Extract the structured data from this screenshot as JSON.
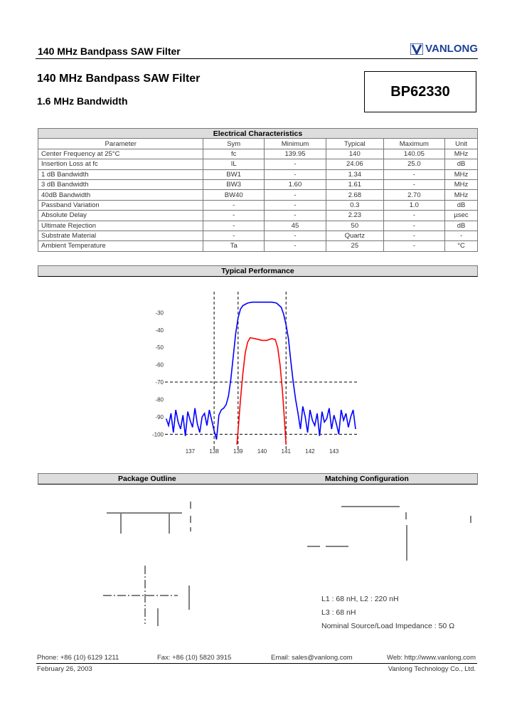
{
  "header": {
    "title": "140 MHz Bandpass SAW Filter",
    "logo_text": "VANLONG",
    "brand_color": "#1e3f9a"
  },
  "title": "140 MHz Bandpass SAW Filter",
  "subtitle": "1.6 MHz Bandwidth",
  "part_number": "BP62330",
  "electrical": {
    "caption": "Electrical Characteristics",
    "columns": [
      "Parameter",
      "Sym",
      "Minimum",
      "Typical",
      "Maximum",
      "Unit"
    ],
    "rows": [
      [
        "Center Frequency at 25°C",
        "fc",
        "139.95",
        "140",
        "140.05",
        "MHz"
      ],
      [
        "Insertion Loss at fc",
        "IL",
        "-",
        "24.06",
        "25.0",
        "dB"
      ],
      [
        "1 dB Bandwidth",
        "BW1",
        "-",
        "1.34",
        "-",
        "MHz"
      ],
      [
        "3 dB Bandwidth",
        "BW3",
        "1.60",
        "1.61",
        "-",
        "MHz"
      ],
      [
        "40dB Bandwidth",
        "BW40",
        "-",
        "2.68",
        "2.70",
        "MHz"
      ],
      [
        "Passband Variation",
        "-",
        "-",
        "0.3",
        "1.0",
        "dB"
      ],
      [
        "Absolute Delay",
        "-",
        "-",
        "2.23",
        "-",
        "µsec"
      ],
      [
        "Ultimate Rejection",
        "-",
        "45",
        "50",
        "-",
        "dB"
      ],
      [
        "Substrate Material",
        "-",
        "-",
        "Quartz",
        "-",
        "-"
      ],
      [
        "Ambient Temperature",
        "Ta",
        "-",
        "25",
        "-",
        "°C"
      ]
    ]
  },
  "performance_title": "Typical Performance",
  "chart_data": {
    "type": "line",
    "xlim": [
      135.95,
      143.9
    ],
    "ylim": [
      -106,
      -18
    ],
    "grid": false,
    "x_ticks": [
      "137",
      "138",
      "139",
      "140",
      "141",
      "142",
      "143"
    ],
    "y_ticks": [
      "-30",
      "-40",
      "-50",
      "-60",
      "-70",
      "-80",
      "-90",
      "-100"
    ],
    "dashed_x": [
      138,
      139,
      141
    ],
    "dashed_y": [
      -70,
      -100
    ],
    "series": [
      {
        "color": "#0000ff",
        "x": [
          136.0,
          136.1,
          136.2,
          136.3,
          136.4,
          136.5,
          136.6,
          136.7,
          136.8,
          136.9,
          137.0,
          137.1,
          137.2,
          137.3,
          137.4,
          137.5,
          137.6,
          137.7,
          137.8,
          137.9,
          138.0,
          138.1,
          138.2,
          138.3,
          138.4,
          138.5,
          138.6,
          138.7,
          138.8,
          138.9,
          139.0,
          139.1,
          139.2,
          139.4,
          139.6,
          140.0,
          140.4,
          140.6,
          140.8,
          140.9,
          141.0,
          141.1,
          141.2,
          141.3,
          141.4,
          141.5,
          141.6,
          141.7,
          141.8,
          141.9,
          142.0,
          142.1,
          142.2,
          142.3,
          142.4,
          142.5,
          142.6,
          142.7,
          142.8,
          142.9,
          143.0,
          143.1,
          143.2,
          143.3,
          143.4,
          143.5,
          143.6,
          143.7,
          143.8,
          143.9
        ],
        "y": [
          -91,
          -95,
          -88,
          -99,
          -86,
          -93,
          -97,
          -89,
          -101,
          -87,
          -92,
          -96,
          -85,
          -94,
          -99,
          -90,
          -88,
          -95,
          -86,
          -92,
          -98,
          -103,
          -89,
          -86,
          -85,
          -83,
          -78,
          -68,
          -55,
          -42,
          -33,
          -28,
          -26,
          -24.5,
          -24,
          -24,
          -24,
          -24.5,
          -27,
          -31,
          -37,
          -45,
          -58,
          -70,
          -80,
          -88,
          -97,
          -84,
          -90,
          -99,
          -86,
          -92,
          -95,
          -88,
          -101,
          -87,
          -93,
          -91,
          -85,
          -97,
          -89,
          -94,
          -100,
          -86,
          -92,
          -88,
          -96,
          -90,
          -86,
          -97
        ]
      },
      {
        "color": "#ff0000",
        "x": [
          138.95,
          139.0,
          139.1,
          139.2,
          139.3,
          139.4,
          139.5,
          139.7,
          140.0,
          140.2,
          140.4,
          140.55,
          140.65,
          140.75,
          140.85,
          140.95,
          141.0
        ],
        "y": [
          -106,
          -98,
          -80,
          -65,
          -53,
          -47,
          -44.5,
          -45,
          -46,
          -46,
          -45,
          -45.5,
          -50,
          -60,
          -75,
          -95,
          -106
        ]
      }
    ]
  },
  "package_title": "Package Outline",
  "matching_title": "Matching Configuration",
  "notes": [
    "L1 : 68 nH,    L2 : 220 nH",
    "L3 : 68 nH",
    "Nominal Source/Load Impedance : 50 Ω"
  ],
  "footer": {
    "phone": "Phone: +86 (10) 6129 1211",
    "fax": "Fax: +86 (10) 5820 3915",
    "email": "Email: sales@vanlong.com",
    "web": "Web: http://www.vanlong.com",
    "date": "February 26, 2003",
    "company": "Vanlong Technology Co., Ltd."
  }
}
